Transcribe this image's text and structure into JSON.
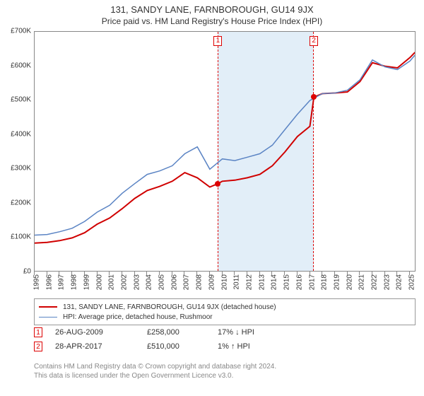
{
  "title": "131, SANDY LANE, FARNBOROUGH, GU14 9JX",
  "subtitle": "Price paid vs. HM Land Registry's House Price Index (HPI)",
  "chart": {
    "type": "line",
    "xlim": [
      1995,
      2025.5
    ],
    "ylim": [
      0,
      700000
    ],
    "ytick_step": 100000,
    "ytick_labels": [
      "£0",
      "£100K",
      "£200K",
      "£300K",
      "£400K",
      "£500K",
      "£600K",
      "£700K"
    ],
    "xtick_years": [
      1995,
      1996,
      1997,
      1998,
      1999,
      2000,
      2001,
      2002,
      2003,
      2004,
      2005,
      2006,
      2007,
      2008,
      2009,
      2010,
      2011,
      2012,
      2013,
      2014,
      2015,
      2016,
      2017,
      2018,
      2019,
      2020,
      2021,
      2022,
      2023,
      2024,
      2025
    ],
    "background_color": "#ffffff",
    "border_color": "#888888",
    "shade_color": "#e2eef8",
    "marker_border": "#d00000",
    "series": [
      {
        "name": "131, SANDY LANE, FARNBOROUGH, GU14 9JX (detached house)",
        "color": "#d00000",
        "width": 2,
        "points": [
          [
            1995,
            85000
          ],
          [
            1996,
            87000
          ],
          [
            1997,
            92000
          ],
          [
            1998,
            100000
          ],
          [
            1999,
            115000
          ],
          [
            2000,
            140000
          ],
          [
            2001,
            158000
          ],
          [
            2002,
            185000
          ],
          [
            2003,
            215000
          ],
          [
            2004,
            238000
          ],
          [
            2005,
            250000
          ],
          [
            2006,
            265000
          ],
          [
            2007,
            290000
          ],
          [
            2008,
            275000
          ],
          [
            2009,
            248000
          ],
          [
            2009.65,
            258000
          ],
          [
            2010,
            265000
          ],
          [
            2011,
            268000
          ],
          [
            2012,
            275000
          ],
          [
            2013,
            285000
          ],
          [
            2014,
            310000
          ],
          [
            2015,
            350000
          ],
          [
            2016,
            395000
          ],
          [
            2017,
            425000
          ],
          [
            2017.32,
            510000
          ],
          [
            2018,
            520000
          ],
          [
            2019,
            522000
          ],
          [
            2020,
            525000
          ],
          [
            2021,
            555000
          ],
          [
            2022,
            610000
          ],
          [
            2023,
            600000
          ],
          [
            2024,
            595000
          ],
          [
            2025,
            625000
          ],
          [
            2025.4,
            640000
          ]
        ]
      },
      {
        "name": "HPI: Average price, detached house, Rushmoor",
        "color": "#5b84c4",
        "width": 1.5,
        "points": [
          [
            1995,
            108000
          ],
          [
            1996,
            110000
          ],
          [
            1997,
            118000
          ],
          [
            1998,
            128000
          ],
          [
            1999,
            148000
          ],
          [
            2000,
            175000
          ],
          [
            2001,
            195000
          ],
          [
            2002,
            230000
          ],
          [
            2003,
            258000
          ],
          [
            2004,
            285000
          ],
          [
            2005,
            295000
          ],
          [
            2006,
            310000
          ],
          [
            2007,
            345000
          ],
          [
            2008,
            365000
          ],
          [
            2009,
            300000
          ],
          [
            2010,
            330000
          ],
          [
            2011,
            325000
          ],
          [
            2012,
            335000
          ],
          [
            2013,
            345000
          ],
          [
            2014,
            370000
          ],
          [
            2015,
            415000
          ],
          [
            2016,
            460000
          ],
          [
            2017,
            500000
          ],
          [
            2018,
            520000
          ],
          [
            2019,
            522000
          ],
          [
            2020,
            530000
          ],
          [
            2021,
            560000
          ],
          [
            2022,
            618000
          ],
          [
            2023,
            598000
          ],
          [
            2024,
            590000
          ],
          [
            2025,
            615000
          ],
          [
            2025.4,
            632000
          ]
        ]
      }
    ],
    "markers": [
      {
        "label": "1",
        "year": 2009.65,
        "price": 258000
      },
      {
        "label": "2",
        "year": 2017.32,
        "price": 510000
      }
    ],
    "shade": {
      "from_year": 2009.65,
      "to_year": 2017.32
    }
  },
  "legend": {
    "items": [
      {
        "color": "#d00000",
        "label": "131, SANDY LANE, FARNBOROUGH, GU14 9JX (detached house)"
      },
      {
        "color": "#5b84c4",
        "label": "HPI: Average price, detached house, Rushmoor"
      }
    ]
  },
  "sales": [
    {
      "badge": "1",
      "date": "26-AUG-2009",
      "price": "£258,000",
      "delta": "17% ↓ HPI"
    },
    {
      "badge": "2",
      "date": "28-APR-2017",
      "price": "£510,000",
      "delta": "1% ↑ HPI"
    }
  ],
  "footer": {
    "line1": "Contains HM Land Registry data © Crown copyright and database right 2024.",
    "line2": "This data is licensed under the Open Government Licence v3.0."
  }
}
